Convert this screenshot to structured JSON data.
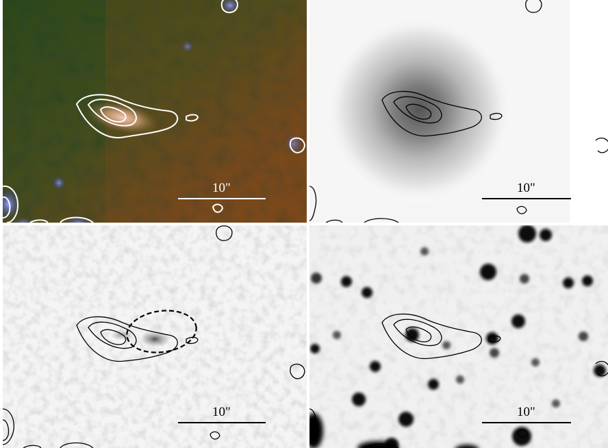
{
  "panels": [
    {
      "id": "rgb-composite",
      "scale_label": "10\"",
      "contour_color": "#ffffff",
      "label_color": "#ffffff"
    },
    {
      "id": "grayscale-smooth",
      "scale_label": "10\"",
      "contour_color": "#000000",
      "label_color": "#000000"
    },
    {
      "id": "grayscale-noisy",
      "scale_label": "10\"",
      "contour_color": "#000000",
      "label_color": "#000000"
    },
    {
      "id": "grayscale-stars",
      "scale_label": "10\"",
      "contour_color": "#000000",
      "label_color": "#000000"
    }
  ]
}
